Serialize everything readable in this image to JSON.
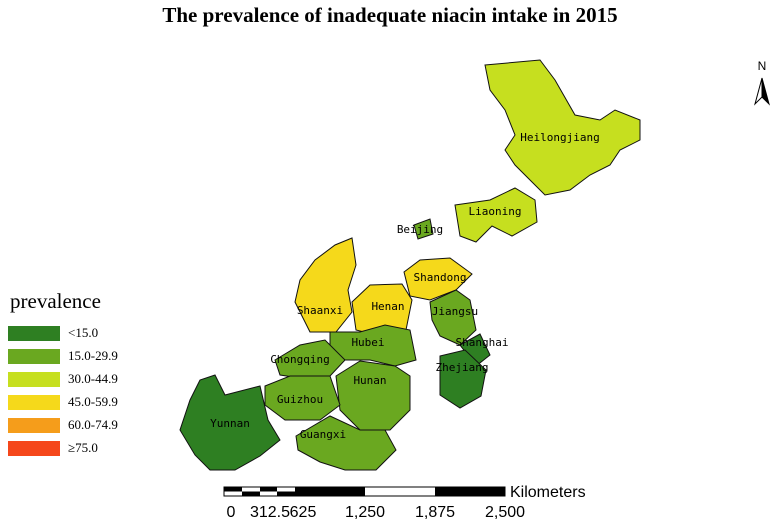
{
  "title": "The prevalence of inadequate niacin intake in 2015",
  "north": "N",
  "legend": {
    "title": "prevalence",
    "items": [
      {
        "label": "<15.0",
        "color": "#2e7f22"
      },
      {
        "label": "15.0-29.9",
        "color": "#6aa820"
      },
      {
        "label": "30.0-44.9",
        "color": "#c6df1f"
      },
      {
        "label": "45.0-59.9",
        "color": "#f5d91b"
      },
      {
        "label": "60.0-74.9",
        "color": "#f59d1b"
      },
      {
        "label": "≥75.0",
        "color": "#f5471b"
      }
    ]
  },
  "provinces": [
    {
      "name": "Heilongjiang",
      "color": "#c6df1f"
    },
    {
      "name": "Liaoning",
      "color": "#c6df1f"
    },
    {
      "name": "Beijing",
      "color": "#6aa820"
    },
    {
      "name": "Shaanxi",
      "color": "#f5d91b"
    },
    {
      "name": "Henan",
      "color": "#f5d91b"
    },
    {
      "name": "Shandong",
      "color": "#f5d91b"
    },
    {
      "name": "Jiangsu",
      "color": "#6aa820"
    },
    {
      "name": "Shanghai",
      "color": "#2e7f22"
    },
    {
      "name": "Zhejiang",
      "color": "#2e7f22"
    },
    {
      "name": "Hubei",
      "color": "#6aa820"
    },
    {
      "name": "Chongqing",
      "color": "#6aa820"
    },
    {
      "name": "Hunan",
      "color": "#6aa820"
    },
    {
      "name": "Guizhou",
      "color": "#6aa820"
    },
    {
      "name": "Yunnan",
      "color": "#2e7f22"
    },
    {
      "name": "Guangxi",
      "color": "#6aa820"
    }
  ],
  "scale_bar": {
    "unit": "Kilometers",
    "labels": [
      "0",
      "312.5",
      "625",
      "1,250",
      "1,875",
      "2,500"
    ]
  }
}
